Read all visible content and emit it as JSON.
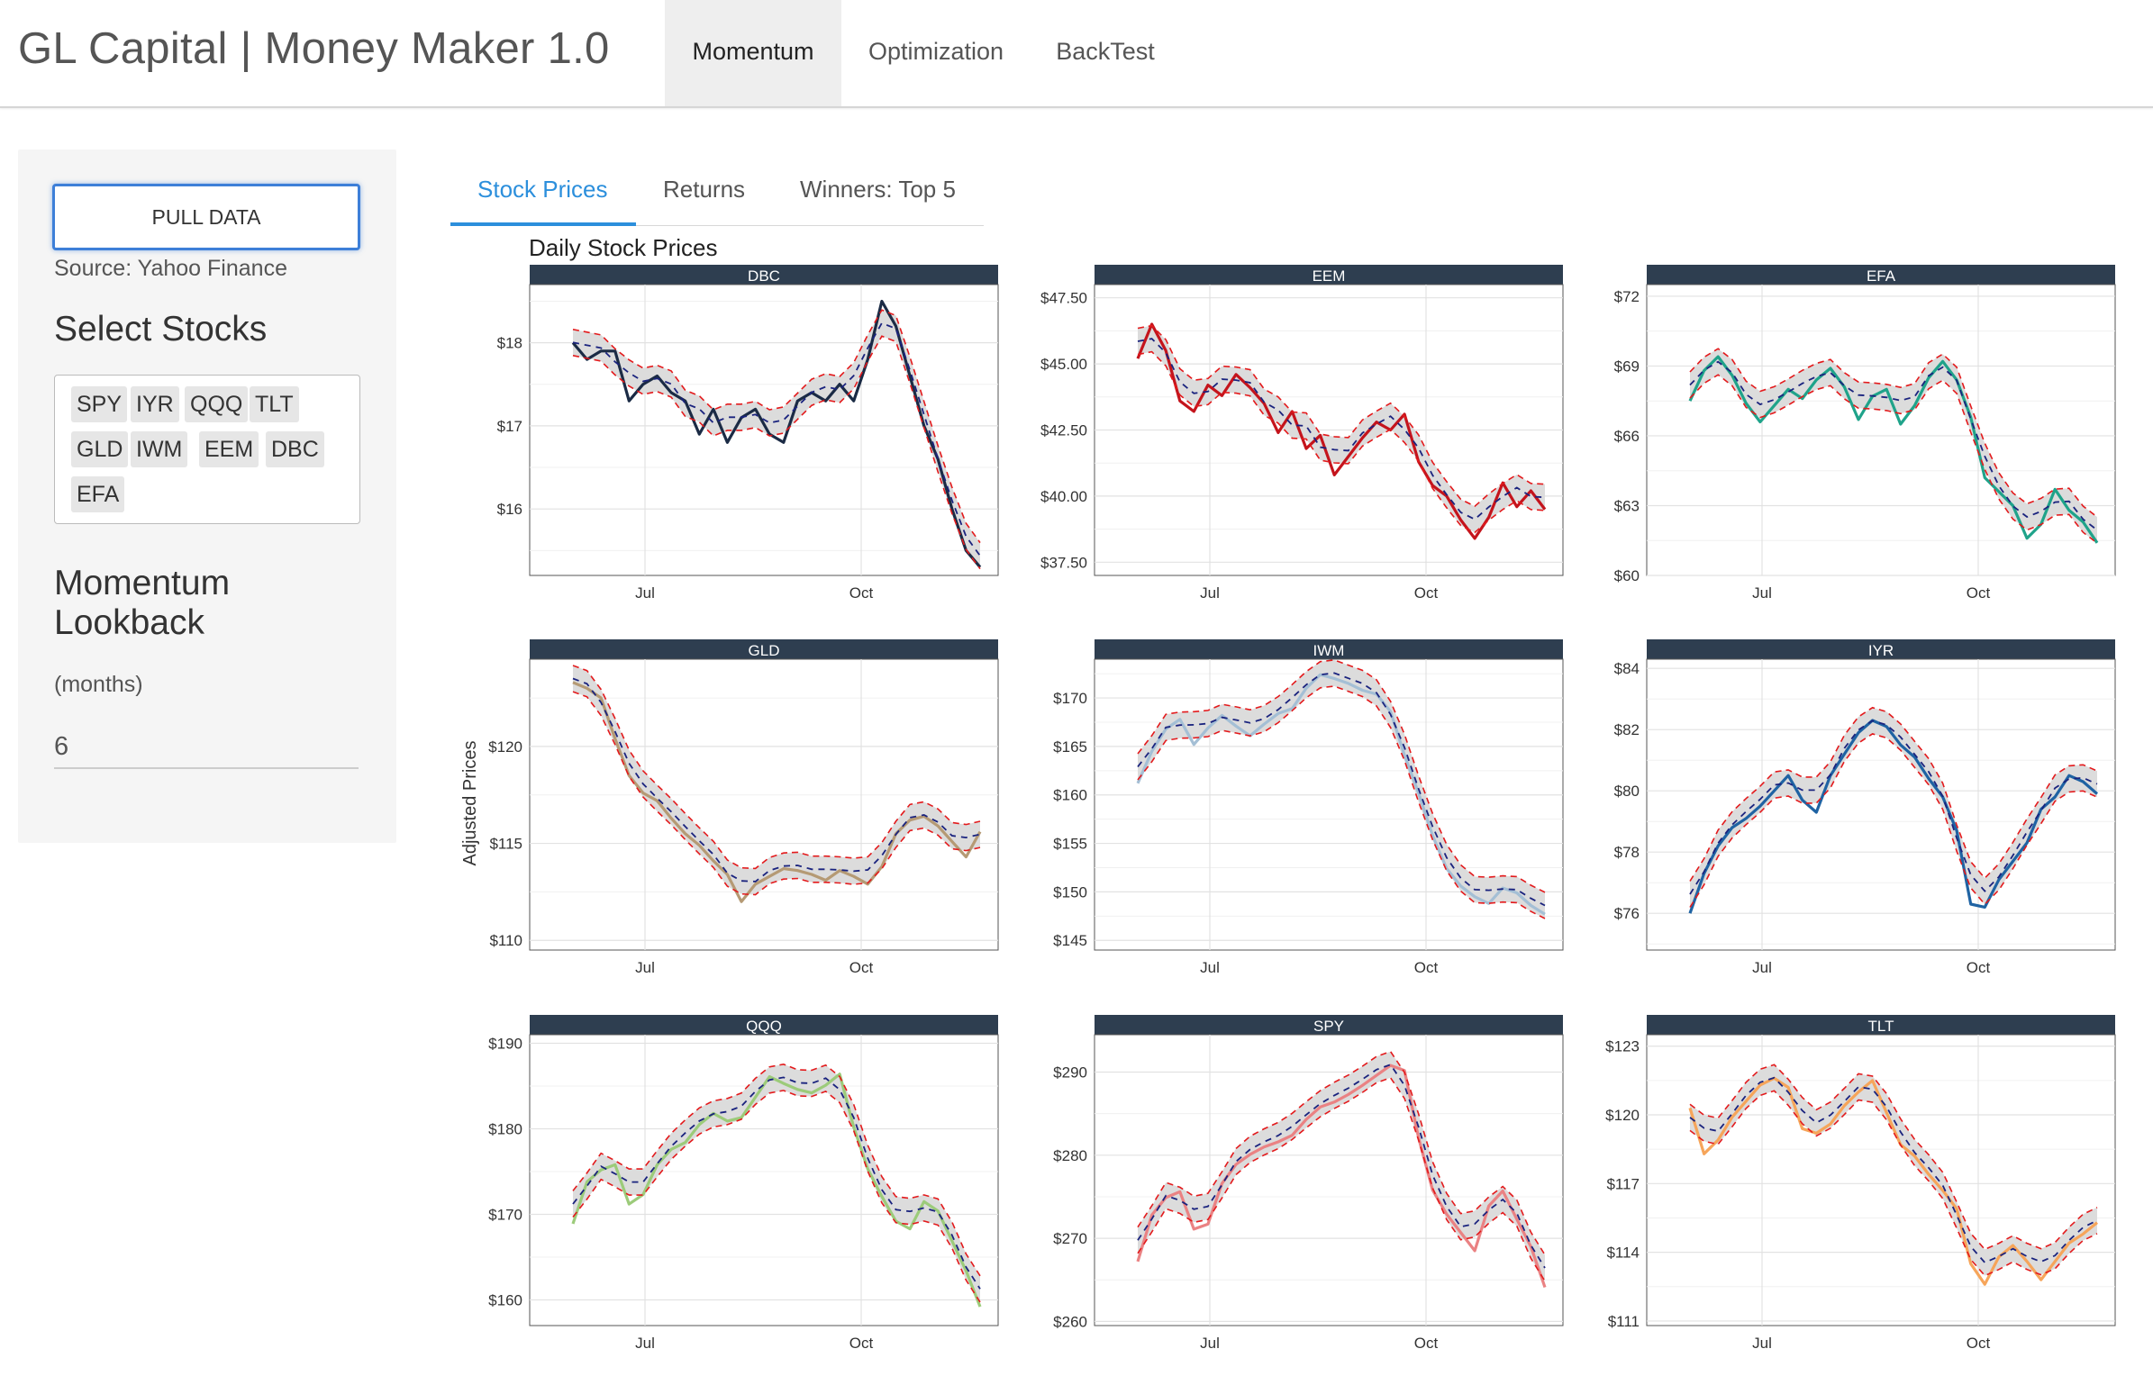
{
  "app": {
    "title": "GL Capital | Money Maker 1.0"
  },
  "nav": {
    "tabs": [
      {
        "label": "Momentum",
        "active": true
      },
      {
        "label": "Optimization",
        "active": false
      },
      {
        "label": "BackTest",
        "active": false
      }
    ]
  },
  "sidebar": {
    "pull_button": "PULL DATA",
    "source": "Source: Yahoo Finance",
    "select_title": "Select Stocks",
    "stocks": [
      "SPY",
      "IYR",
      "QQQ",
      "TLT",
      "GLD",
      "IWM",
      "EEM",
      "DBC",
      "EFA"
    ],
    "lookback_title": "Momentum Lookback",
    "lookback_units": "(months)",
    "lookback_value": "6"
  },
  "subtabs": [
    {
      "label": "Stock Prices",
      "active": true
    },
    {
      "label": "Returns",
      "active": false
    },
    {
      "label": "Winners: Top 5",
      "active": false
    }
  ],
  "colors": {
    "accent": "#2c8fdc",
    "strip": "#2e3e50",
    "band": "#dcdcdc",
    "bound": "#e31a1c",
    "mean": "#1a237e"
  },
  "chart_data": {
    "type": "line",
    "title": "Daily Stock Prices",
    "ylabel": "Adjusted Prices",
    "xlabel": "",
    "x_ticks": [
      "Jul",
      "Oct"
    ],
    "x_range_months": [
      5.4,
      11.9
    ],
    "x_tick_positions_months": [
      7.0,
      10.0
    ],
    "panels": [
      {
        "name": "DBC",
        "color": "#1b2b45",
        "ylim": [
          15.2,
          18.7
        ],
        "yticks": [
          16,
          17,
          18
        ],
        "ytick_labels": [
          "$16",
          "$17",
          "$18"
        ],
        "values": [
          18.0,
          17.8,
          17.9,
          17.9,
          17.3,
          17.5,
          17.6,
          17.4,
          17.3,
          16.9,
          17.2,
          16.8,
          17.1,
          17.2,
          16.9,
          16.8,
          17.3,
          17.4,
          17.3,
          17.5,
          17.3,
          17.8,
          18.5,
          18.2,
          17.6,
          17.0,
          16.6,
          16.0,
          15.5,
          15.3
        ]
      },
      {
        "name": "EEM",
        "color": "#c4141c",
        "ylim": [
          37.0,
          48.0
        ],
        "yticks": [
          37.5,
          40.0,
          42.5,
          45.0,
          47.5
        ],
        "ytick_labels": [
          "$37.50",
          "$40.00",
          "$42.50",
          "$45.00",
          "$47.50"
        ],
        "values": [
          45.2,
          46.5,
          45.5,
          43.6,
          43.2,
          44.2,
          43.8,
          44.6,
          44.1,
          43.5,
          42.4,
          43.2,
          41.8,
          42.3,
          40.8,
          41.5,
          42.2,
          42.8,
          42.5,
          43.1,
          41.3,
          40.4,
          40.0,
          39.1,
          38.4,
          39.2,
          40.5,
          39.6,
          40.2,
          39.5
        ]
      },
      {
        "name": "EFA",
        "color": "#1fa38a",
        "ylim": [
          60,
          72.5
        ],
        "yticks": [
          60,
          63,
          66,
          69,
          72
        ],
        "ytick_labels": [
          "$60",
          "$63",
          "$66",
          "$69",
          "$72"
        ],
        "values": [
          67.5,
          68.8,
          69.4,
          68.6,
          67.4,
          66.6,
          67.3,
          68.0,
          67.6,
          68.4,
          68.9,
          68.1,
          66.7,
          67.7,
          68.0,
          66.5,
          67.3,
          68.5,
          69.2,
          68.4,
          66.8,
          64.2,
          63.6,
          63.0,
          61.6,
          62.2,
          63.7,
          62.8,
          62.3,
          61.4
        ]
      },
      {
        "name": "GLD",
        "color": "#b59a74",
        "ylim": [
          109.5,
          124.5
        ],
        "yticks": [
          110,
          115,
          120
        ],
        "ytick_labels": [
          "$110",
          "$115",
          "$120"
        ],
        "values": [
          123.3,
          123.0,
          122.5,
          120.4,
          118.5,
          117.6,
          117.2,
          116.3,
          115.5,
          114.9,
          114.1,
          113.4,
          112.0,
          112.9,
          113.3,
          113.7,
          113.6,
          113.4,
          113.1,
          113.6,
          113.3,
          112.9,
          113.8,
          115.5,
          116.2,
          116.4,
          115.9,
          115.1,
          114.3,
          115.6
        ]
      },
      {
        "name": "IWM",
        "color": "#a4bfd5",
        "ylim": [
          144,
          174
        ],
        "yticks": [
          145,
          150,
          155,
          160,
          165,
          170
        ],
        "ytick_labels": [
          "$145",
          "$150",
          "$155",
          "$160",
          "$165",
          "$170"
        ],
        "values": [
          161.2,
          164.5,
          166.8,
          167.8,
          165.2,
          166.9,
          168.2,
          167.1,
          166.1,
          167.3,
          168.4,
          168.9,
          171.0,
          172.4,
          172.0,
          171.5,
          170.8,
          170.4,
          168.6,
          164.1,
          160.2,
          155.8,
          152.4,
          150.6,
          149.5,
          148.8,
          150.4,
          149.9,
          148.6,
          147.7
        ]
      },
      {
        "name": "IYR",
        "color": "#1f63a3",
        "ylim": [
          74.8,
          84.3
        ],
        "yticks": [
          76,
          78,
          80,
          82,
          84
        ],
        "ytick_labels": [
          "$76",
          "$78",
          "$80",
          "$82",
          "$84"
        ],
        "values": [
          76.0,
          77.3,
          78.2,
          78.8,
          79.1,
          79.5,
          80.0,
          80.5,
          79.7,
          79.3,
          80.5,
          81.2,
          81.9,
          82.3,
          82.1,
          81.5,
          81.1,
          80.4,
          79.8,
          78.7,
          76.3,
          76.2,
          77.1,
          77.7,
          78.3,
          79.4,
          79.8,
          80.5,
          80.3,
          79.9
        ]
      },
      {
        "name": "QQQ",
        "color": "#9ccb7a",
        "ylim": [
          157,
          191
        ],
        "yticks": [
          160,
          170,
          180,
          190
        ],
        "ytick_labels": [
          "$160",
          "$170",
          "$180",
          "$190"
        ],
        "values": [
          168.9,
          173.8,
          175.2,
          175.8,
          171.2,
          172.3,
          175.8,
          177.6,
          178.4,
          180.5,
          181.8,
          180.9,
          181.3,
          183.7,
          186.1,
          185.3,
          184.6,
          184.2,
          185.1,
          186.4,
          180.2,
          175.3,
          172.1,
          169.2,
          168.3,
          171.5,
          170.4,
          166.9,
          163.4,
          159.2
        ]
      },
      {
        "name": "SPY",
        "color": "#ea8283",
        "ylim": [
          259.5,
          294.5
        ],
        "yticks": [
          260,
          270,
          280,
          290
        ],
        "ytick_labels": [
          "$260",
          "$270",
          "$280",
          "$290"
        ],
        "values": [
          267.2,
          272.8,
          274.9,
          275.6,
          271.1,
          271.7,
          276.6,
          278.9,
          280.1,
          281.0,
          281.6,
          282.4,
          284.3,
          285.8,
          286.4,
          287.3,
          288.4,
          289.6,
          290.8,
          290.2,
          282.1,
          275.8,
          272.9,
          270.7,
          268.5,
          273.9,
          275.7,
          272.3,
          269.0,
          264.1
        ]
      },
      {
        "name": "TLT",
        "color": "#f6a55a",
        "ylim": [
          110.8,
          123.5
        ],
        "yticks": [
          111,
          114,
          117,
          120,
          123
        ],
        "ytick_labels": [
          "$111",
          "$114",
          "$117",
          "$120",
          "$123"
        ],
        "values": [
          120.3,
          118.3,
          118.9,
          119.9,
          120.6,
          121.3,
          121.6,
          121.2,
          119.4,
          119.2,
          119.6,
          120.4,
          121.0,
          121.5,
          120.1,
          118.7,
          118.2,
          117.4,
          116.7,
          115.9,
          113.5,
          112.6,
          113.8,
          114.3,
          113.6,
          112.8,
          113.6,
          114.4,
          114.8,
          115.3
        ]
      }
    ]
  }
}
